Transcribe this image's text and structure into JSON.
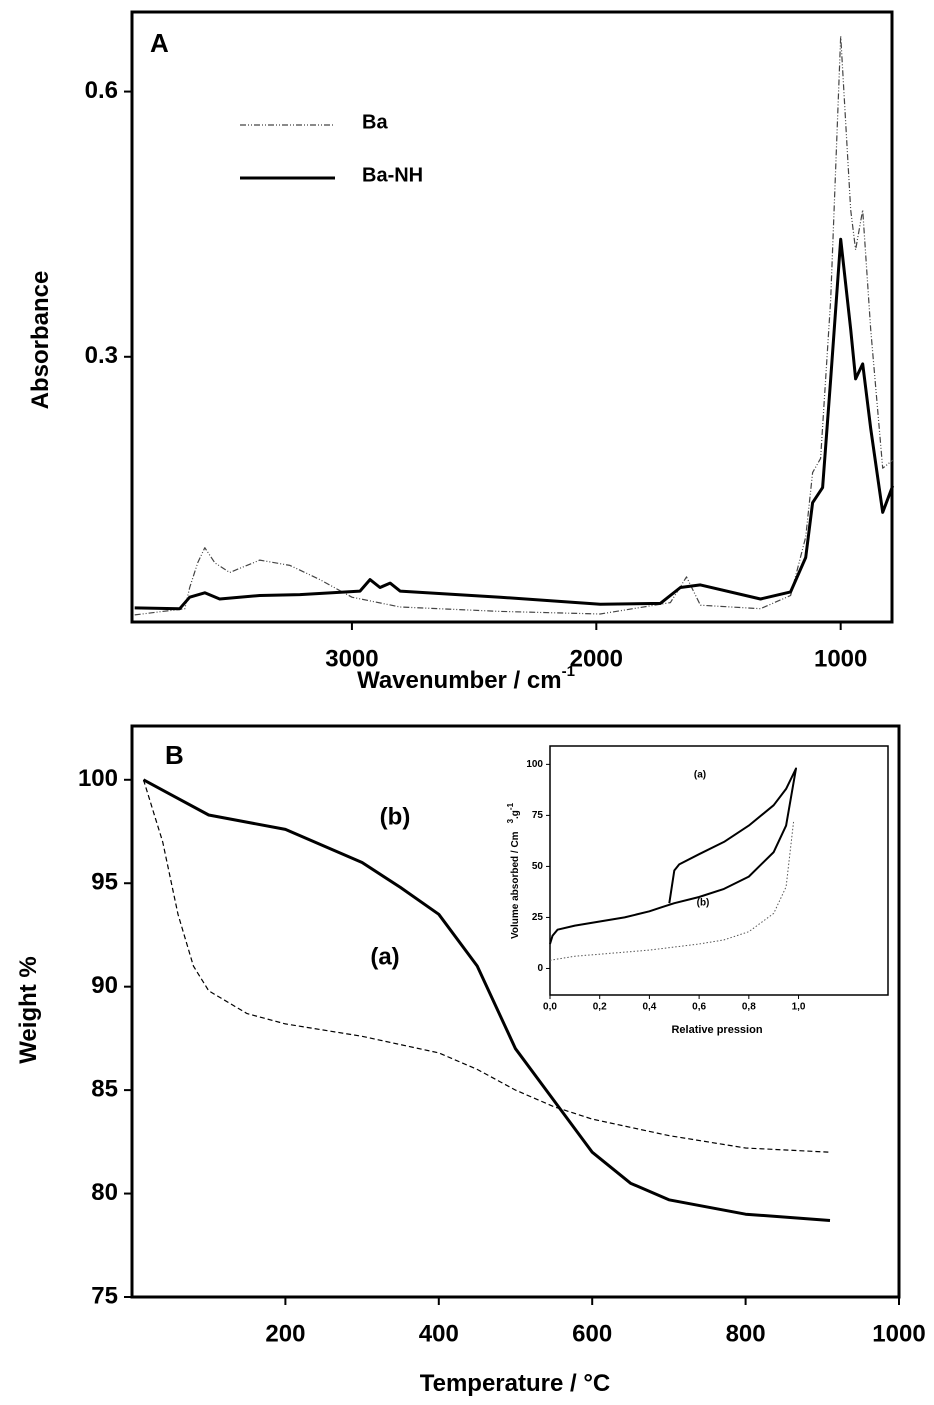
{
  "chart_data": [
    {
      "type": "line",
      "label": "A",
      "y_label": "Absorbance",
      "x_label": "Wavenumber / cm",
      "x_label_sup": "-1",
      "xlim": [
        3900,
        790
      ],
      "ylim": [
        0,
        0.69
      ],
      "xticks": [
        3000,
        2000,
        1000
      ],
      "yticks": [
        0.3,
        0.6
      ],
      "legend": "upper left",
      "series": [
        {
          "name": "Ba",
          "color": "#444444",
          "line_style": "dashdot",
          "x": [
            3889,
            3684,
            3664,
            3631,
            3602,
            3561,
            3500,
            3377,
            3254,
            3131,
            3000,
            2803,
            2393,
            1984,
            1697,
            1631,
            1574,
            1328,
            1205,
            1143,
            1115,
            1082,
            1041,
            1000,
            959,
            939,
            910,
            877,
            828,
            787
          ],
          "values": [
            0.008,
            0.015,
            0.039,
            0.067,
            0.084,
            0.067,
            0.056,
            0.07,
            0.064,
            0.048,
            0.028,
            0.017,
            0.012,
            0.009,
            0.022,
            0.051,
            0.019,
            0.015,
            0.03,
            0.096,
            0.169,
            0.185,
            0.365,
            0.663,
            0.466,
            0.421,
            0.466,
            0.331,
            0.174,
            0.183
          ]
        },
        {
          "name": "Ba-NH",
          "color": "#000000",
          "line_style": "solid",
          "x": [
            3889,
            3705,
            3664,
            3602,
            3541,
            3377,
            3213,
            2967,
            2926,
            2885,
            2844,
            2803,
            2393,
            1984,
            1738,
            1656,
            1574,
            1328,
            1205,
            1143,
            1115,
            1074,
            1041,
            1000,
            959,
            939,
            910,
            877,
            828,
            787
          ],
          "values": [
            0.016,
            0.015,
            0.028,
            0.033,
            0.026,
            0.03,
            0.031,
            0.035,
            0.048,
            0.039,
            0.044,
            0.035,
            0.028,
            0.02,
            0.021,
            0.039,
            0.042,
            0.026,
            0.034,
            0.073,
            0.135,
            0.152,
            0.275,
            0.433,
            0.331,
            0.275,
            0.292,
            0.219,
            0.124,
            0.154
          ]
        }
      ]
    },
    {
      "type": "line",
      "label": "B",
      "y_label": "Weight %",
      "x_label": "Temperature / °C",
      "xlim": [
        0,
        1000
      ],
      "ylim": [
        75,
        102.6
      ],
      "xticks": [
        200,
        400,
        600,
        800,
        1000
      ],
      "yticks": [
        75,
        80,
        85,
        90,
        95,
        100
      ],
      "annotations": [
        "(b)",
        "(a)"
      ],
      "series": [
        {
          "color": "#000000",
          "line_style": "solid",
          "x": [
            15,
            50,
            100,
            200,
            300,
            350,
            400,
            450,
            500,
            550,
            600,
            650,
            700,
            800,
            910
          ],
          "values": [
            100,
            99.3,
            98.3,
            97.6,
            96,
            94.8,
            93.5,
            91,
            87,
            84.5,
            82,
            80.5,
            79.7,
            79,
            78.7
          ]
        },
        {
          "color": "#000000",
          "line_style": "dashed",
          "x": [
            15,
            40,
            60,
            80,
            100,
            150,
            200,
            300,
            400,
            450,
            500,
            550,
            600,
            700,
            800,
            910
          ],
          "values": [
            100,
            97,
            93.5,
            91,
            89.8,
            88.7,
            88.2,
            87.6,
            86.8,
            86,
            85,
            84.2,
            83.6,
            82.8,
            82.2,
            82
          ]
        }
      ]
    },
    {
      "type": "line",
      "y_label": "Volume absorbed / Cm",
      "y_label_sup": "3",
      "y_label_2": ".g",
      "y_label_sup2": "-1",
      "x_label": "Relative pression",
      "xlim": [
        0,
        1.36
      ],
      "ylim": [
        -13,
        109
      ],
      "xticks": [
        {
          "value": 0,
          "label": "0,0"
        },
        {
          "value": 0.2,
          "label": "0,2"
        },
        {
          "value": 0.4,
          "label": "0,4"
        },
        {
          "value": 0.6,
          "label": "0,6"
        },
        {
          "value": 0.8,
          "label": "0,8"
        },
        {
          "value": 1,
          "label": "1,0"
        }
      ],
      "yticks": [
        0,
        25,
        50,
        75,
        100
      ],
      "annotations": [
        "(a)",
        "(b)"
      ],
      "series": [
        {
          "color": "#000000",
          "line_style": "solid",
          "x": [
            0,
            0.01,
            0.03,
            0.1,
            0.2,
            0.3,
            0.4,
            0.45,
            0.5,
            0.6,
            0.7,
            0.8,
            0.9,
            0.95,
            0.99,
            0.95,
            0.9,
            0.8,
            0.7,
            0.6,
            0.52,
            0.5,
            0.48
          ],
          "values": [
            12,
            16,
            19,
            21,
            23,
            25,
            28,
            30,
            32,
            35,
            39,
            45,
            57,
            70,
            98,
            88,
            80,
            70,
            62,
            56,
            51,
            48,
            32
          ]
        },
        {
          "color": "#555555",
          "line_style": "dotted",
          "x": [
            0,
            0.1,
            0.2,
            0.4,
            0.6,
            0.7,
            0.8,
            0.9,
            0.95,
            0.98
          ],
          "values": [
            4,
            6,
            7,
            9,
            12,
            14,
            18,
            27,
            40,
            72
          ]
        }
      ]
    }
  ]
}
